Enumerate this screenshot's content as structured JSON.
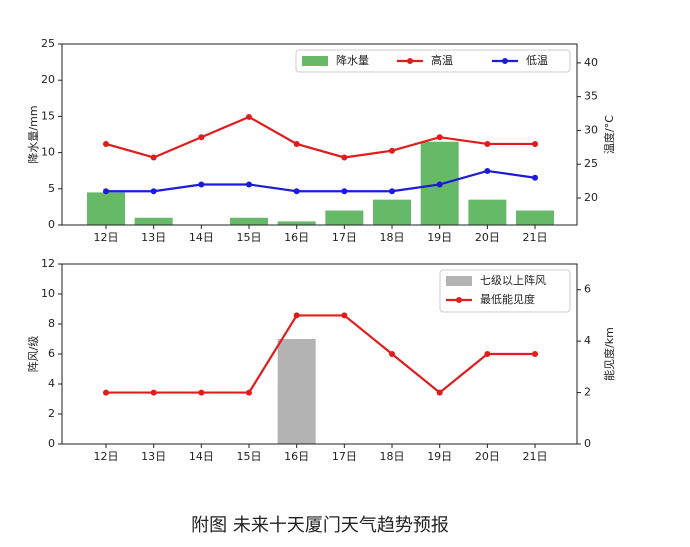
{
  "chart_data": [
    {
      "type": "bar",
      "categories": [
        "12日",
        "13日",
        "14日",
        "15日",
        "16日",
        "17日",
        "18日",
        "19日",
        "20日",
        "21日"
      ],
      "ylabel": "降水量/mm",
      "y2label": "温度/°C",
      "ylim": [
        0,
        25
      ],
      "yticks": [
        0,
        5,
        10,
        15,
        20,
        25
      ],
      "y2lim": [
        16,
        42.8
      ],
      "y2ticks": [
        20,
        25,
        30,
        35,
        40
      ],
      "legend": "upper right",
      "series": [
        {
          "name": "降水量",
          "type": "bar",
          "color": "#66b966",
          "values": [
            4.5,
            1,
            0,
            1,
            0.5,
            2,
            3.5,
            11.5,
            3.5,
            2
          ]
        },
        {
          "name": "高温",
          "type": "line",
          "axis": "y2",
          "color": "#e01c1c",
          "values": [
            28,
            26,
            29,
            32,
            28,
            26,
            27,
            29,
            28,
            28
          ]
        },
        {
          "name": "低温",
          "type": "line",
          "axis": "y2",
          "color": "#1c1cd6",
          "values": [
            21,
            21,
            22,
            22,
            21,
            21,
            21,
            22,
            24,
            23
          ]
        }
      ]
    },
    {
      "type": "bar",
      "categories": [
        "12日",
        "13日",
        "14日",
        "15日",
        "16日",
        "17日",
        "18日",
        "19日",
        "20日",
        "21日"
      ],
      "ylabel": "阵风/级",
      "y2label": "能见度/km",
      "ylim": [
        0,
        12
      ],
      "yticks": [
        0,
        2,
        4,
        6,
        8,
        10,
        12
      ],
      "y2lim": [
        0,
        7
      ],
      "y2ticks": [
        0,
        2,
        4,
        6
      ],
      "legend": "upper right",
      "series": [
        {
          "name": "七级以上阵风",
          "type": "bar",
          "color": "#b3b3b3",
          "values": [
            0,
            0,
            0,
            0,
            7,
            0,
            0,
            0,
            0,
            0
          ]
        },
        {
          "name": "最低能见度",
          "type": "line",
          "axis": "y2",
          "color": "#e01c1c",
          "values": [
            2,
            2,
            2,
            2,
            5,
            5,
            3.5,
            2,
            3.5,
            3.5
          ]
        }
      ]
    }
  ],
  "caption": "附图 未来十天厦门天气趋势预报"
}
